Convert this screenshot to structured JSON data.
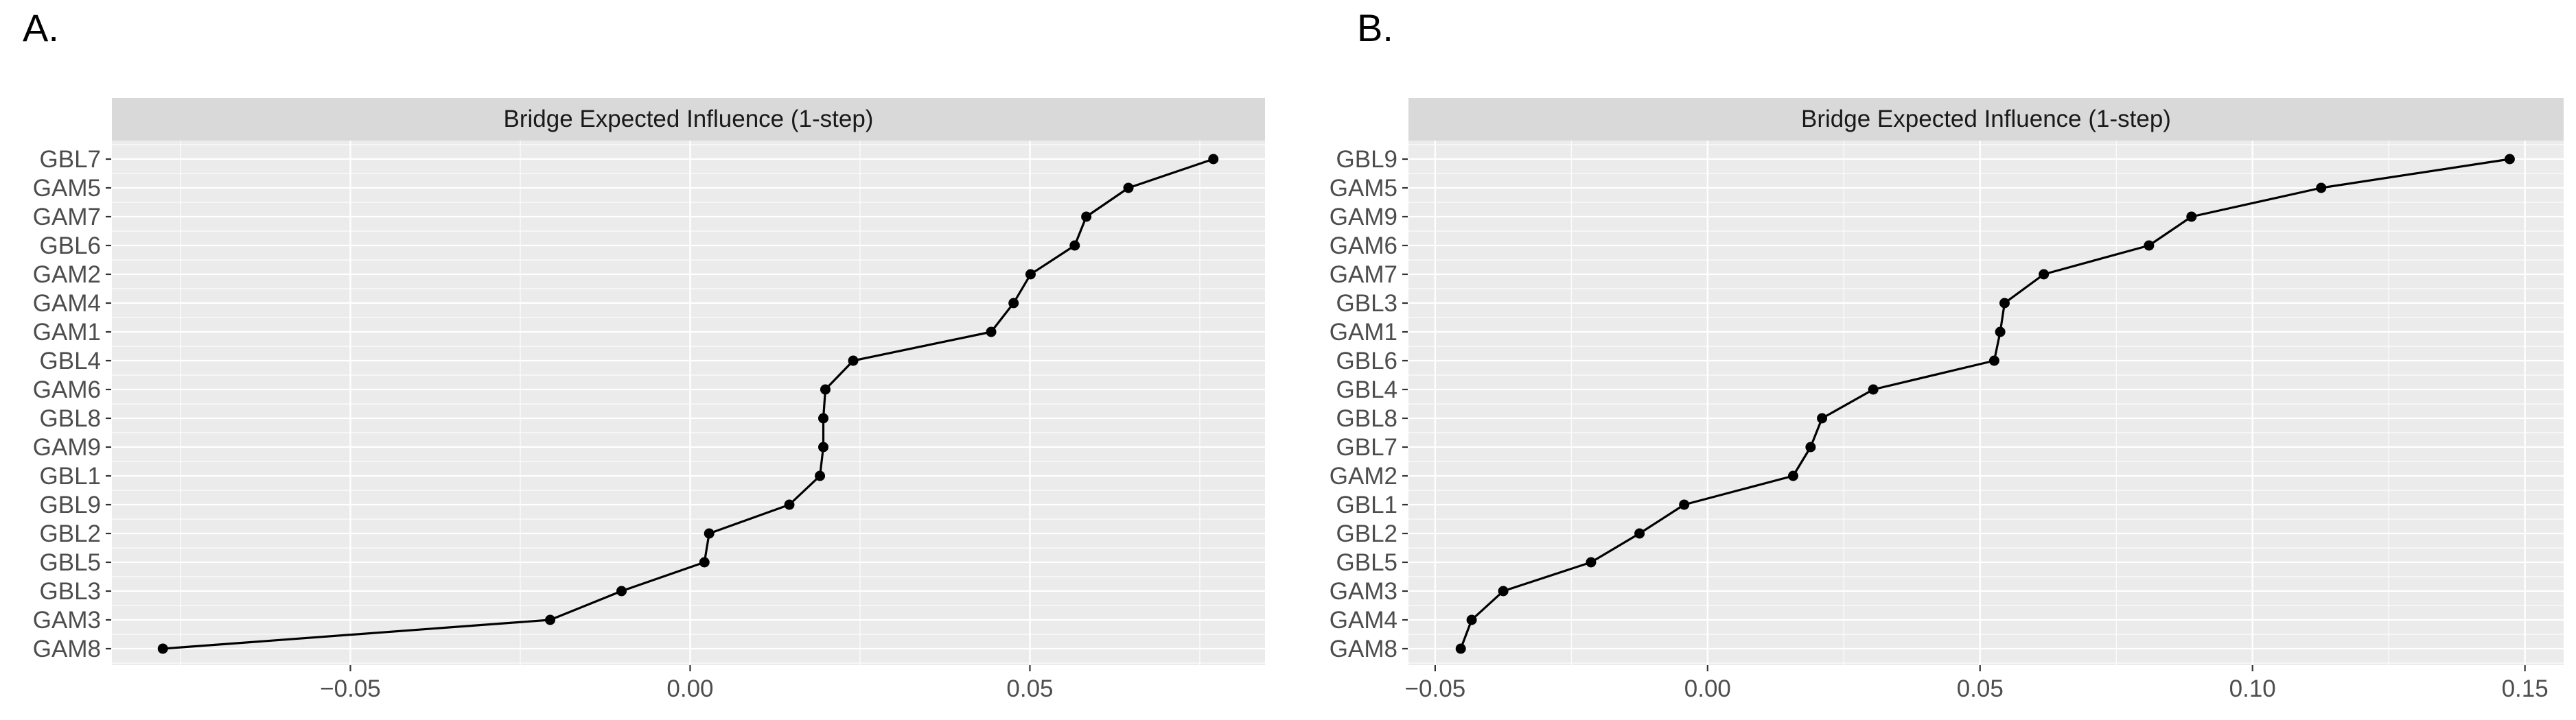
{
  "figure": {
    "description_title": "Bridge Expected Influence (1-step)",
    "colors": {
      "strip_bg": "#d9d9d9",
      "panel_bg": "#ebebeb",
      "grid_major": "#ffffff",
      "grid_minor": "#ffffff",
      "data_line": "#000000",
      "data_point": "#000000",
      "axis_text": "#4d4d4d",
      "tick_mark": "#333333",
      "strip_text": "#1a1a1a",
      "panel_label_text": "#000000"
    }
  },
  "chart_data": [
    {
      "type": "scatter",
      "panel_label": "A.",
      "title": "Bridge Expected Influence (1-step)",
      "orientation": "horizontal-dot-line",
      "legend": null,
      "grid": true,
      "categories": [
        "GBL7",
        "GAM5",
        "GAM7",
        "GBL6",
        "GAM2",
        "GAM4",
        "GAM1",
        "GBL4",
        "GAM6",
        "GBL8",
        "GAM9",
        "GBL1",
        "GBL9",
        "GBL2",
        "GBL5",
        "GBL3",
        "GAM3",
        "GAM8"
      ],
      "values": [
        0.077,
        0.0645,
        0.0583,
        0.0566,
        0.0501,
        0.0476,
        0.0443,
        0.024,
        0.0199,
        0.0196,
        0.0196,
        0.0191,
        0.0146,
        0.0028,
        0.0021,
        -0.0101,
        -0.0206,
        -0.0776
      ],
      "xlim": [
        -0.0851,
        0.0846
      ],
      "xticks": [
        {
          "value": -0.05,
          "label": "−0.05"
        },
        {
          "value": 0.0,
          "label": "0.00"
        },
        {
          "value": 0.05,
          "label": "0.05"
        }
      ],
      "minor_xticks": [
        -0.075,
        -0.025,
        0.025,
        0.075
      ]
    },
    {
      "type": "scatter",
      "panel_label": "B.",
      "title": "Bridge Expected Influence (1-step)",
      "orientation": "horizontal-dot-line",
      "legend": null,
      "grid": true,
      "categories": [
        "GBL9",
        "GAM5",
        "GAM9",
        "GAM6",
        "GAM7",
        "GBL3",
        "GAM1",
        "GBL6",
        "GBL4",
        "GBL8",
        "GBL7",
        "GAM2",
        "GBL1",
        "GBL2",
        "GBL5",
        "GAM3",
        "GAM4",
        "GAM8"
      ],
      "values": [
        0.1472,
        0.1126,
        0.0888,
        0.081,
        0.0617,
        0.0545,
        0.0537,
        0.0526,
        0.0304,
        0.021,
        0.0189,
        0.0157,
        -0.0043,
        -0.0125,
        -0.0214,
        -0.0375,
        -0.0433,
        -0.0453
      ],
      "xlim": [
        -0.0549,
        0.1571
      ],
      "xticks": [
        {
          "value": -0.05,
          "label": "−0.05"
        },
        {
          "value": 0.0,
          "label": "0.00"
        },
        {
          "value": 0.05,
          "label": "0.05"
        },
        {
          "value": 0.1,
          "label": "0.10"
        },
        {
          "value": 0.15,
          "label": "0.15"
        }
      ],
      "minor_xticks": [
        -0.025,
        0.025,
        0.075,
        0.125
      ]
    }
  ]
}
